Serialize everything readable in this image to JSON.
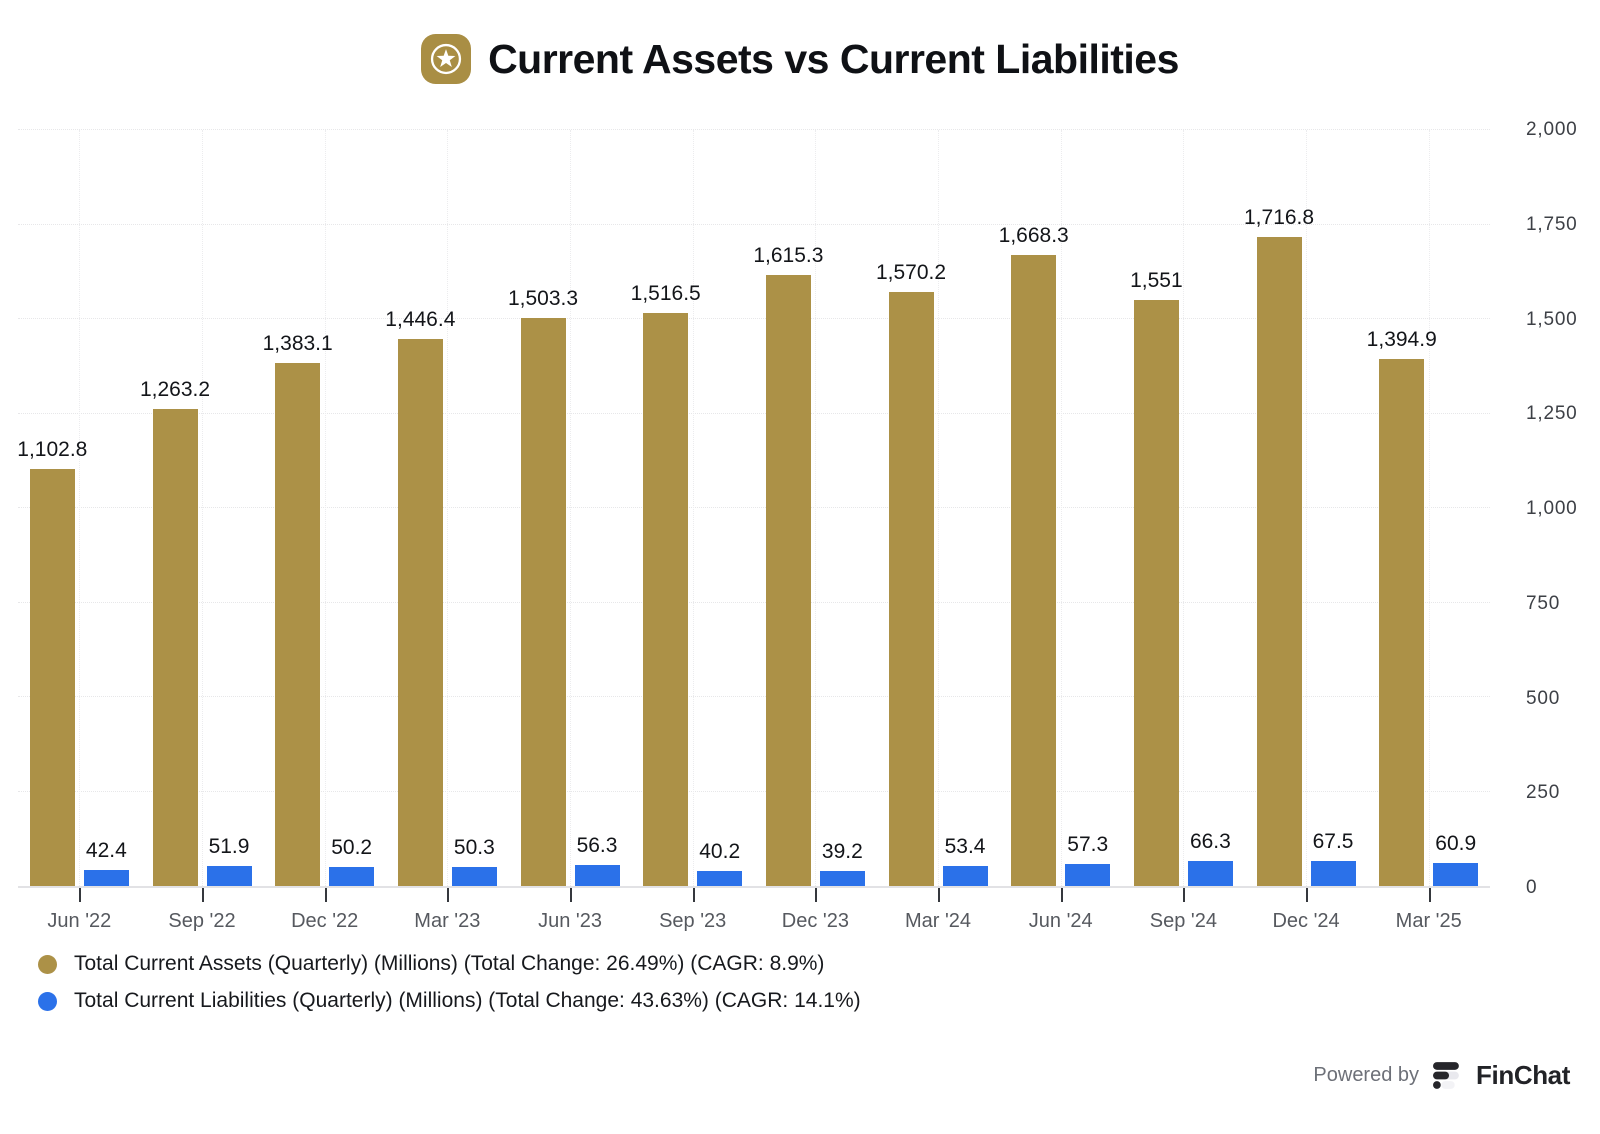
{
  "title": {
    "text": "Current Assets vs Current Liabilities",
    "icon": "star-badge-icon",
    "icon_color": "#A98E44"
  },
  "colors": {
    "assets": "#AC9147",
    "liabilities": "#2B71E9",
    "grid": "#e9e9eb",
    "axis": "#e2e2e5"
  },
  "chart_data": {
    "type": "bar",
    "title": "Current Assets vs Current Liabilities",
    "categories": [
      "Jun '22",
      "Sep '22",
      "Dec '22",
      "Mar '23",
      "Jun '23",
      "Sep '23",
      "Dec '23",
      "Mar '24",
      "Jun '24",
      "Sep '24",
      "Dec '24",
      "Mar '25"
    ],
    "series": [
      {
        "name": "Total Current Assets (Quarterly) (Millions)",
        "color": "#AC9147",
        "values": [
          1102.8,
          1263.2,
          1383.1,
          1446.4,
          1503.3,
          1516.5,
          1615.3,
          1570.2,
          1668.3,
          1551,
          1716.8,
          1394.9
        ],
        "labels": [
          "1,102.8",
          "1,263.2",
          "1,383.1",
          "1,446.4",
          "1,503.3",
          "1,516.5",
          "1,615.3",
          "1,570.2",
          "1,668.3",
          "1,551",
          "1,716.8",
          "1,394.9"
        ]
      },
      {
        "name": "Total Current Liabilities (Quarterly) (Millions)",
        "color": "#2B71E9",
        "values": [
          42.4,
          51.9,
          50.2,
          50.3,
          56.3,
          40.2,
          39.2,
          53.4,
          57.3,
          66.3,
          67.5,
          60.9
        ],
        "labels": [
          "42.4",
          "51.9",
          "50.2",
          "50.3",
          "56.3",
          "40.2",
          "39.2",
          "53.4",
          "57.3",
          "66.3",
          "67.5",
          "60.9"
        ]
      }
    ],
    "ylim": [
      0,
      2000
    ],
    "yticks": {
      "values": [
        2000,
        1750,
        1500,
        1250,
        1000,
        750,
        500,
        250,
        0
      ],
      "labels": [
        "2,000",
        "1,750",
        "1,500",
        "1,250",
        "1,000",
        "750",
        "500",
        "250",
        "0"
      ]
    },
    "grid": true,
    "legend_position": "bottom-left"
  },
  "legend": {
    "items": [
      {
        "label": "Total Current Assets (Quarterly) (Millions) (Total Change: 26.49%) (CAGR: 8.9%)",
        "color": "#AC9147"
      },
      {
        "label": "Total Current Liabilities (Quarterly) (Millions) (Total Change: 43.63%) (CAGR: 14.1%)",
        "color": "#2B71E9"
      }
    ]
  },
  "footer": {
    "powered_by": "Powered by",
    "brand": "FinChat"
  }
}
